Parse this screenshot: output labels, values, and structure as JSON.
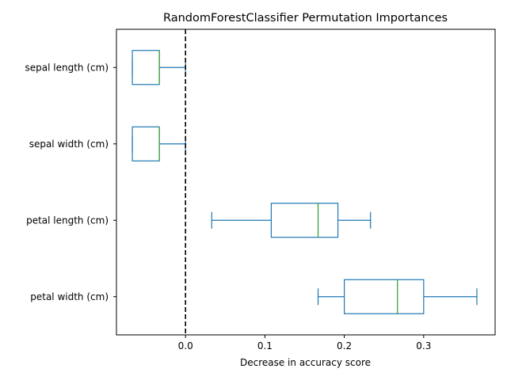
{
  "chart_data": {
    "type": "boxplot",
    "orientation": "horizontal",
    "title": "RandomForestClassifier Permutation Importances",
    "xlabel": "Decrease in accuracy score",
    "ylabel": "",
    "xlim": [
      -0.087,
      0.39
    ],
    "xticks": [
      0.0,
      0.1,
      0.2,
      0.3
    ],
    "xtick_labels": [
      "0.0",
      "0.1",
      "0.2",
      "0.3"
    ],
    "grid": false,
    "reference_line": {
      "x": 0.0,
      "style": "dashed",
      "color": "#000000"
    },
    "categories": [
      "sepal length (cm)",
      "sepal width (cm)",
      "petal length (cm)",
      "petal width (cm)"
    ],
    "boxes": [
      {
        "label": "sepal length (cm)",
        "whisker_low": -0.067,
        "q1": -0.067,
        "median": -0.033,
        "q3": -0.033,
        "whisker_high": 0.0
      },
      {
        "label": "sepal width (cm)",
        "whisker_low": -0.067,
        "q1": -0.067,
        "median": -0.033,
        "q3": -0.033,
        "whisker_high": 0.0
      },
      {
        "label": "petal length (cm)",
        "whisker_low": 0.033,
        "q1": 0.108,
        "median": 0.167,
        "q3": 0.192,
        "whisker_high": 0.233
      },
      {
        "label": "petal width (cm)",
        "whisker_low": 0.167,
        "q1": 0.2,
        "median": 0.267,
        "q3": 0.3,
        "whisker_high": 0.367
      }
    ],
    "colors": {
      "box": "#1f77b4",
      "median": "#2ca02c",
      "axis": "#000000"
    }
  }
}
